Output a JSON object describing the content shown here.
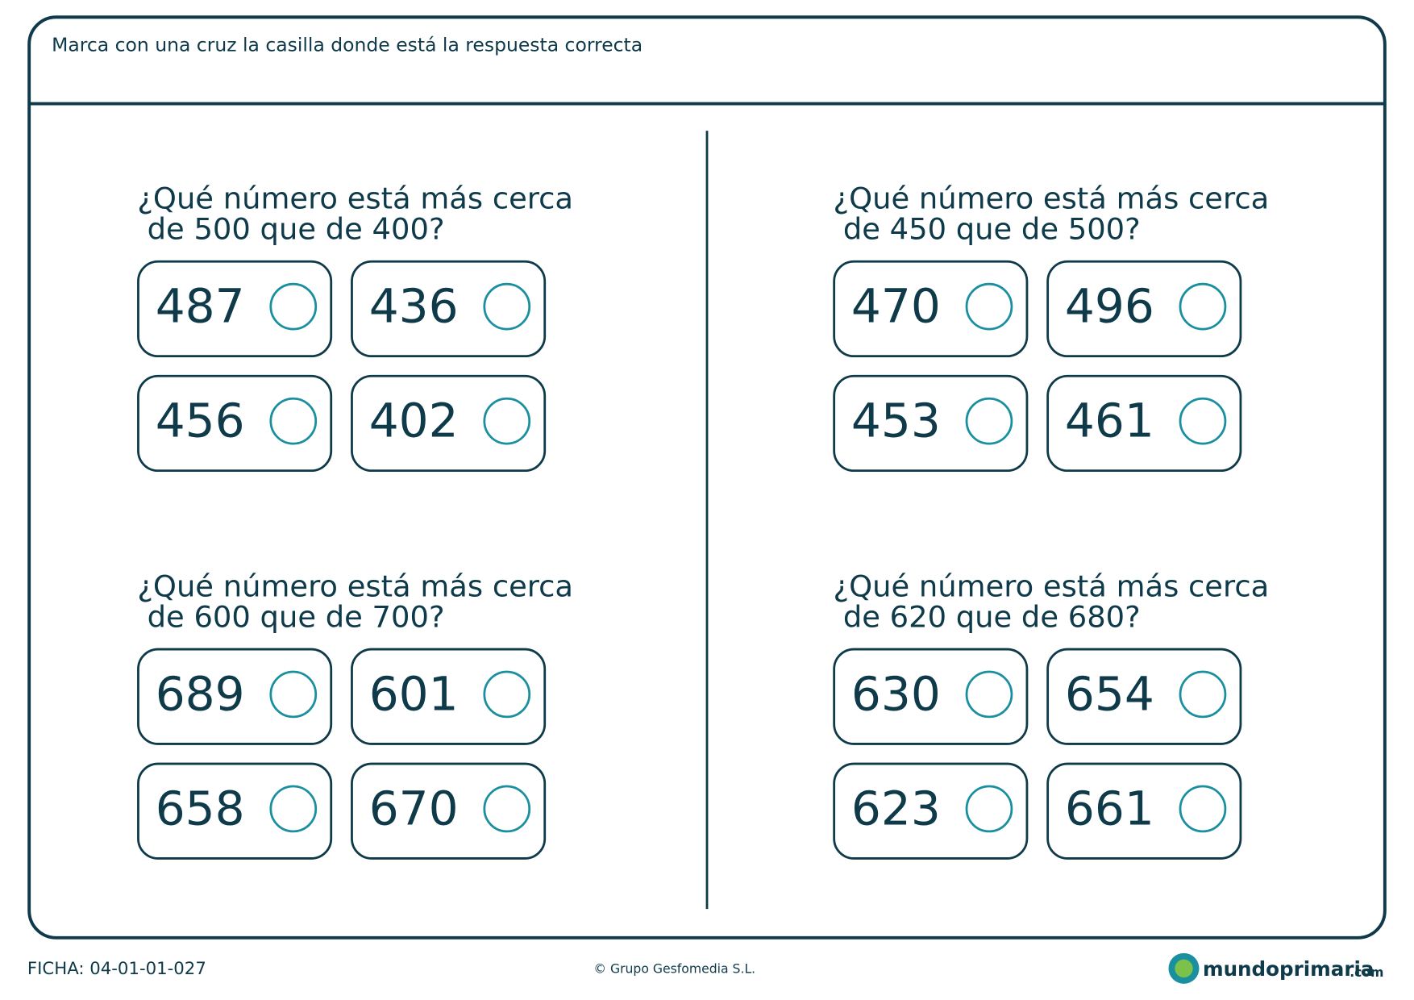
{
  "instruction": "Marca con una cruz la casilla donde está la respuesta correcta",
  "questions": [
    {
      "line1": "¿Qué número está más cerca",
      "line2": "de 500 que de 400?",
      "options": [
        "487",
        "436",
        "456",
        "402"
      ]
    },
    {
      "line1": "¿Qué número está más cerca",
      "line2": "de 450 que de 500?",
      "options": [
        "470",
        "496",
        "453",
        "461"
      ]
    },
    {
      "line1": "¿Qué número está más cerca",
      "line2": "de 600 que de 700?",
      "options": [
        "689",
        "601",
        "658",
        "670"
      ]
    },
    {
      "line1": "¿Qué número está más cerca",
      "line2": "de 620 que de 680?",
      "options": [
        "630",
        "654",
        "623",
        "661"
      ]
    }
  ],
  "footer": {
    "code": "FICHA: 04-01-01-027",
    "copyright": "© Grupo Gesfomedia S.L.",
    "logo": {
      "name": "mundoprimaria",
      "domain": ".com"
    }
  }
}
